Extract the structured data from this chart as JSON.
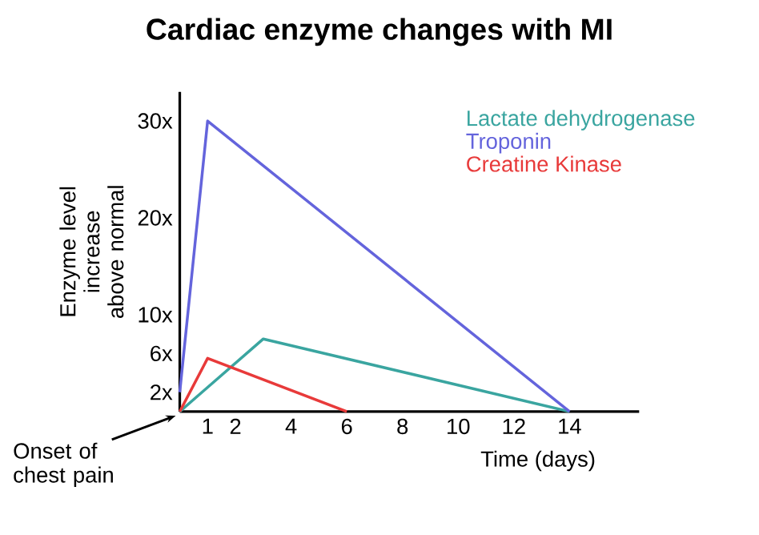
{
  "chart_data": {
    "type": "line",
    "title": "Cardiac enzyme changes with MI",
    "xlabel": "Time (days)",
    "ylabel": "Enzyme level increase above normal",
    "xlim": [
      0,
      16.5
    ],
    "ylim": [
      0,
      33
    ],
    "xticks": [
      1,
      2,
      4,
      6,
      8,
      10,
      12,
      14
    ],
    "yticks": [
      {
        "value": 2,
        "label": "2x"
      },
      {
        "value": 6,
        "label": "6x"
      },
      {
        "value": 10,
        "label": "10x"
      },
      {
        "value": 20,
        "label": "20x"
      },
      {
        "value": 30,
        "label": "30x"
      }
    ],
    "legend": "top right",
    "marker": "none",
    "line_style": "solid",
    "grid": false,
    "series": [
      {
        "name": "Lactate dehydrogenase",
        "color": "#3aa5a0",
        "x": [
          0,
          3,
          14
        ],
        "values": [
          0,
          7.5,
          0
        ]
      },
      {
        "name": "Troponin",
        "color": "#6464dc",
        "x": [
          0,
          1,
          14
        ],
        "values": [
          2,
          30,
          0
        ]
      },
      {
        "name": "Creatine Kinase",
        "color": "#e83a3a",
        "x": [
          0,
          1,
          6
        ],
        "values": [
          0,
          5.5,
          0
        ]
      }
    ],
    "annotations": [
      {
        "text": "Onset of chest pain",
        "x": 0,
        "y": 0
      }
    ]
  }
}
